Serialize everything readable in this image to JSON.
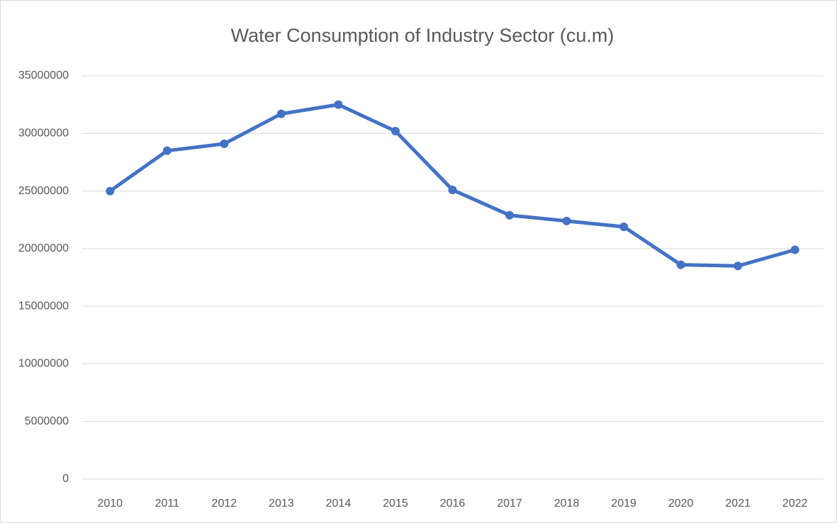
{
  "chart_data": {
    "type": "line",
    "title": "Water Consumption of Industry Sector (cu.m)",
    "categories": [
      "2010",
      "2011",
      "2012",
      "2013",
      "2014",
      "2015",
      "2016",
      "2017",
      "2018",
      "2019",
      "2020",
      "2021",
      "2022"
    ],
    "values": [
      25000000,
      28500000,
      29100000,
      31700000,
      32500000,
      30200000,
      25100000,
      22900000,
      22400000,
      21900000,
      18600000,
      18500000,
      19900000
    ],
    "color": "#4472c4",
    "ylim": [
      0,
      35000000
    ],
    "yticks": [
      0,
      5000000,
      10000000,
      15000000,
      20000000,
      25000000,
      30000000,
      35000000
    ],
    "grid": true
  }
}
